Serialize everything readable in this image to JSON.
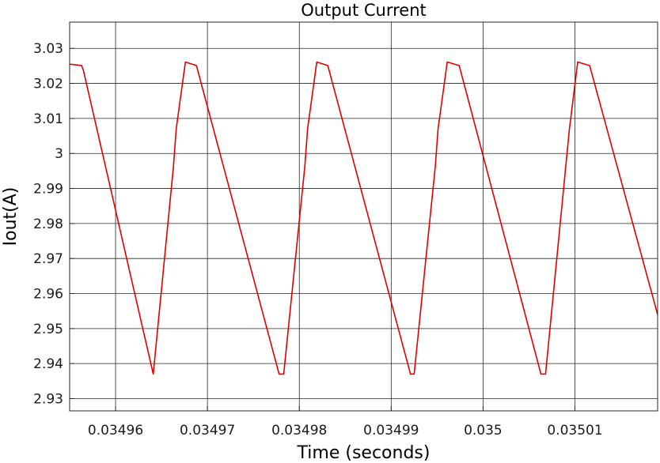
{
  "chart_data": {
    "type": "line",
    "title": "Output Current",
    "xlabel": "Time (seconds)",
    "ylabel": "Iout(A)",
    "xlim": [
      0.034955,
      0.035019
    ],
    "ylim": [
      2.9265,
      3.0375
    ],
    "grid": true,
    "line_color": "#e00000",
    "grid_color": "#262626",
    "x_ticks": [
      0.03496,
      0.03497,
      0.03498,
      0.03499,
      0.035,
      0.03501
    ],
    "x_tick_labels": [
      "0.03496",
      "0.03497",
      "0.03498",
      "0.03499",
      "0.035",
      "0.03501"
    ],
    "y_ticks": [
      2.93,
      2.94,
      2.95,
      2.96,
      2.97,
      2.98,
      2.99,
      3.0,
      3.01,
      3.02,
      3.03
    ],
    "y_tick_labels": [
      "2.93",
      "2.94",
      "2.95",
      "2.96",
      "2.97",
      "2.98",
      "2.99",
      "3",
      "3.01",
      "3.02",
      "3.03"
    ],
    "series": [
      {
        "x": [
          0.034955,
          0.0349563,
          0.0349565,
          0.0349641,
          0.0349663,
          0.0349666,
          0.0349676,
          0.0349688,
          0.0349778,
          0.0349781,
          0.0349783,
          0.0349806,
          0.0349809,
          0.0349819,
          0.0349831,
          0.0349921,
          0.0349923,
          0.0349925,
          0.0349948,
          0.0349951,
          0.0349961,
          0.0349974,
          0.0350063,
          0.0350066,
          0.0350068,
          0.035009,
          0.0350094,
          0.0350103,
          0.0350116,
          0.035019
        ],
        "y": [
          3.0255,
          3.0251,
          3.0237,
          2.937,
          2.9963,
          3.007,
          3.0261,
          3.0251,
          2.937,
          2.937,
          2.937,
          2.9963,
          3.007,
          3.0261,
          3.0251,
          2.937,
          2.937,
          2.937,
          2.9963,
          3.007,
          3.0261,
          3.0251,
          2.937,
          2.937,
          2.937,
          2.9963,
          3.007,
          3.0261,
          3.0251,
          2.954
        ]
      }
    ]
  }
}
